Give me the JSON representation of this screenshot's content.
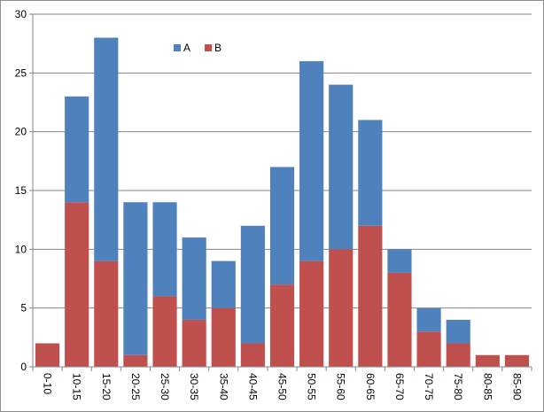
{
  "chart_data": {
    "type": "bar",
    "stacked": true,
    "title": "",
    "xlabel": "",
    "ylabel": "",
    "categories": [
      "0-10",
      "10-15",
      "15-20",
      "20-25",
      "25-30",
      "30-35",
      "35-40",
      "40-45",
      "45-50",
      "50-55",
      "55-60",
      "60-65",
      "65-70",
      "70-75",
      "75-80",
      "80-85",
      "85-90"
    ],
    "series": [
      {
        "name": "B",
        "color": "#c0504d",
        "values": [
          2,
          14,
          9,
          1,
          6,
          4,
          5,
          2,
          7,
          9,
          10,
          12,
          8,
          3,
          2,
          1,
          1
        ]
      },
      {
        "name": "A",
        "color": "#4f81bd",
        "values": [
          0,
          9,
          19,
          13,
          8,
          7,
          4,
          10,
          10,
          17,
          14,
          9,
          2,
          2,
          2,
          0,
          0
        ]
      }
    ],
    "legend": {
      "position": "top-center",
      "entries": [
        "A",
        "B"
      ]
    },
    "ylim": [
      0,
      30
    ],
    "yticks": [
      0,
      5,
      10,
      15,
      20,
      25,
      30
    ],
    "grid": true,
    "x_tick_rotation": "vertical"
  }
}
